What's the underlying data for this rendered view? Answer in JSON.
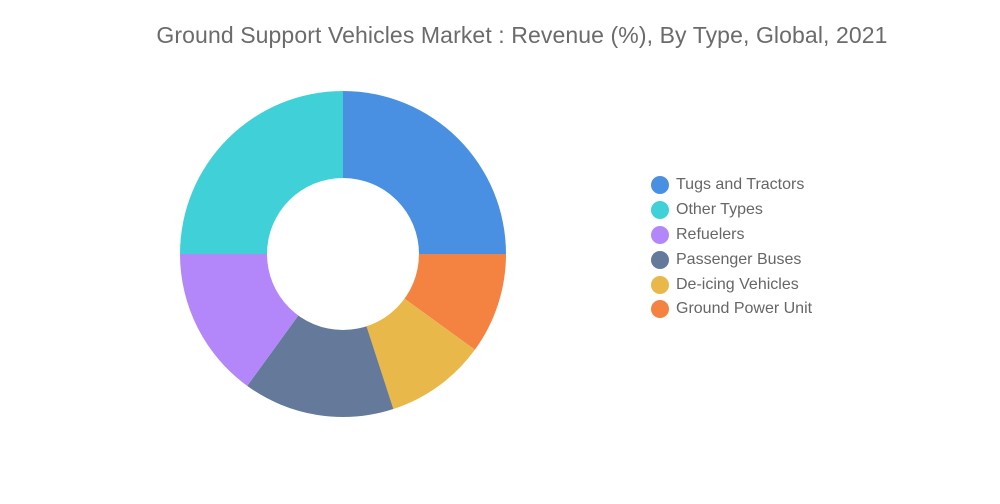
{
  "chart_data": {
    "type": "pie",
    "title": "Ground Support Vehicles Market : Revenue (%), By Type, Global, 2021",
    "legend_position": "right",
    "donut": true,
    "unit": "%",
    "categories": [
      "Tugs and Tractors",
      "Other Types",
      "Refuelers",
      "Passenger Buses",
      "De-icing Vehicles",
      "Ground Power Unit"
    ],
    "slices": [
      {
        "label": "Tugs and Tractors",
        "value": 25,
        "color": "#4a90e2"
      },
      {
        "label": "Ground Power Unit",
        "value": 10,
        "color": "#f48341"
      },
      {
        "label": "De-icing Vehicles",
        "value": 10,
        "color": "#e9b84a"
      },
      {
        "label": "Passenger Buses",
        "value": 15,
        "color": "#65799b"
      },
      {
        "label": "Refuelers",
        "value": 15,
        "color": "#b387fa"
      },
      {
        "label": "Other Types",
        "value": 25,
        "color": "#3fd0d8"
      }
    ]
  }
}
